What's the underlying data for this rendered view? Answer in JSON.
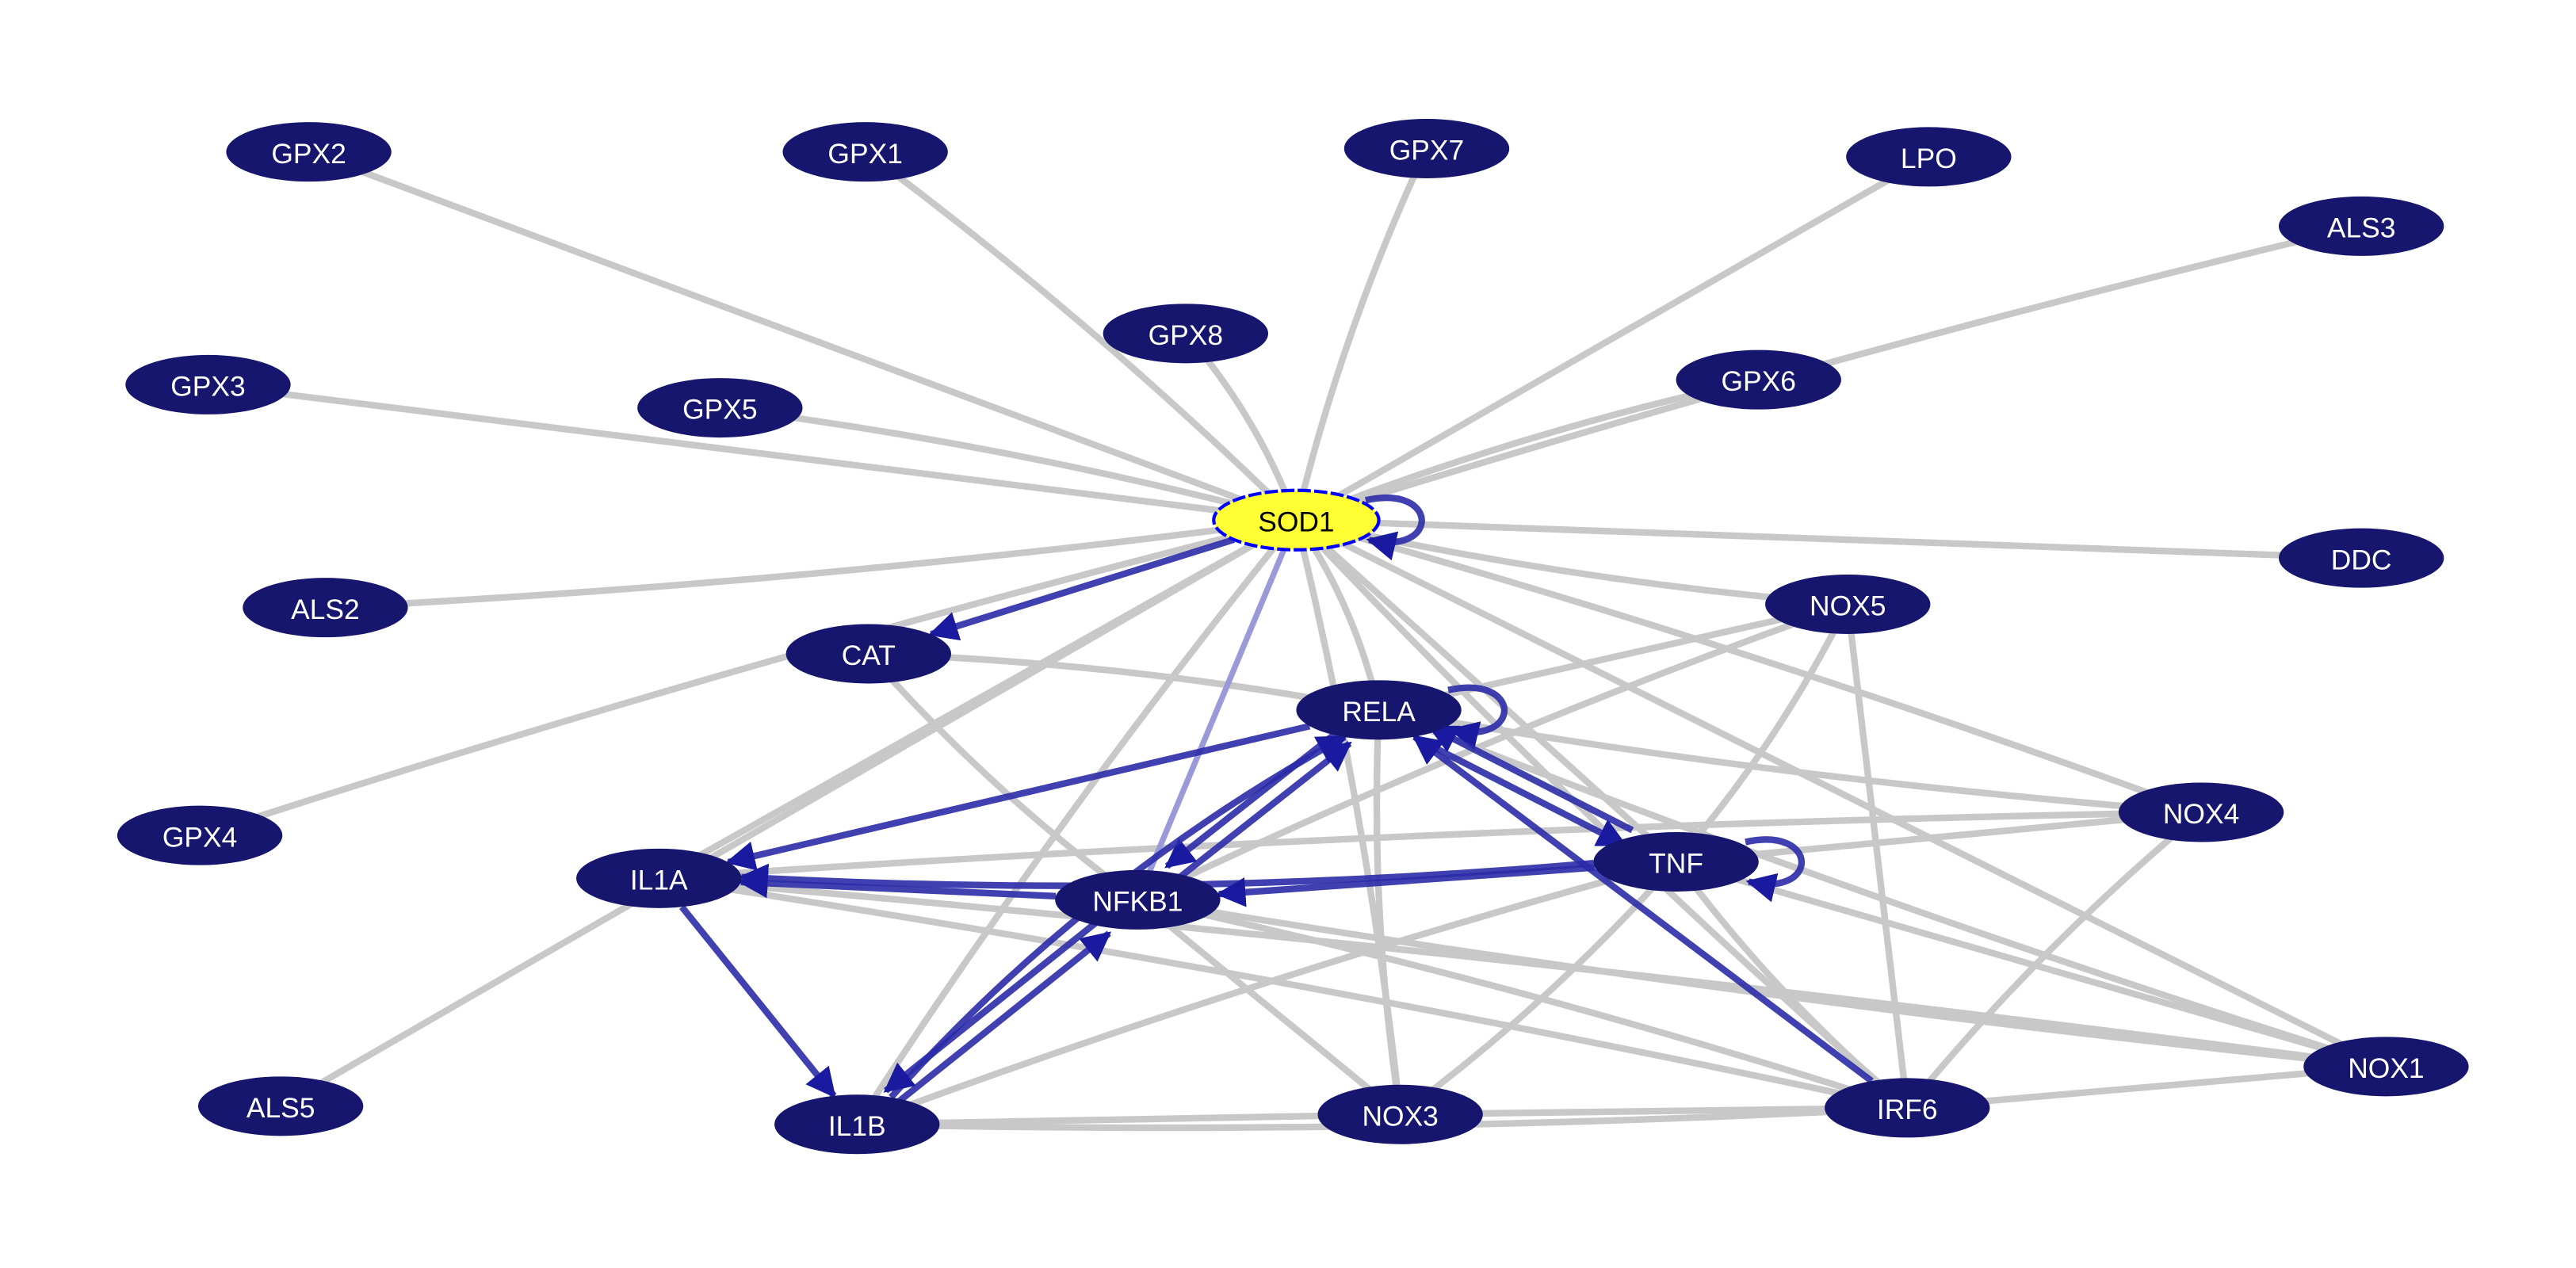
{
  "colors": {
    "node_fill": "#16166e",
    "node_text": "#ffffff",
    "focus_fill": "#ffff33",
    "focus_border": "#0000ff",
    "focus_text": "#000000",
    "edge_gray": "#c8c8c8",
    "edge_blue": "#2b2ba8",
    "edge_lightblue": "#9a9ad8",
    "background": "#ffffff"
  },
  "focus_node": "SOD1",
  "nodes": [
    "GPX2",
    "GPX1",
    "GPX7",
    "LPO",
    "ALS3",
    "GPX8",
    "GPX3",
    "GPX5",
    "GPX6",
    "SOD1",
    "DDC",
    "ALS2",
    "NOX5",
    "CAT",
    "RELA",
    "GPX4",
    "NOX4",
    "IL1A",
    "TNF",
    "NFKB1",
    "ALS5",
    "IL1B",
    "NOX3",
    "IRF6",
    "NOX1"
  ],
  "edges_undirected": [
    [
      "SOD1",
      "GPX2"
    ],
    [
      "SOD1",
      "GPX1"
    ],
    [
      "SOD1",
      "GPX7"
    ],
    [
      "SOD1",
      "LPO"
    ],
    [
      "SOD1",
      "ALS3"
    ],
    [
      "SOD1",
      "GPX8"
    ],
    [
      "SOD1",
      "GPX3"
    ],
    [
      "SOD1",
      "GPX5"
    ],
    [
      "SOD1",
      "GPX6"
    ],
    [
      "SOD1",
      "DDC"
    ],
    [
      "SOD1",
      "ALS2"
    ],
    [
      "SOD1",
      "GPX4"
    ],
    [
      "SOD1",
      "ALS5"
    ],
    [
      "SOD1",
      "NOX5"
    ],
    [
      "SOD1",
      "NOX4"
    ],
    [
      "SOD1",
      "NOX1"
    ],
    [
      "SOD1",
      "NOX3"
    ],
    [
      "SOD1",
      "IRF6"
    ],
    [
      "SOD1",
      "IL1A"
    ],
    [
      "SOD1",
      "IL1B"
    ],
    [
      "SOD1",
      "RELA"
    ],
    [
      "SOD1",
      "TNF"
    ],
    [
      "CAT",
      "RELA"
    ],
    [
      "CAT",
      "NFKB1"
    ],
    [
      "NOX5",
      "RELA"
    ],
    [
      "NOX5",
      "NFKB1"
    ],
    [
      "NOX5",
      "TNF"
    ],
    [
      "NOX5",
      "IRF6"
    ],
    [
      "NOX4",
      "RELA"
    ],
    [
      "NOX4",
      "IL1A"
    ],
    [
      "NOX4",
      "TNF"
    ],
    [
      "NOX4",
      "IRF6"
    ],
    [
      "NOX1",
      "RELA"
    ],
    [
      "NOX1",
      "TNF"
    ],
    [
      "NOX1",
      "NFKB1"
    ],
    [
      "NOX1",
      "IL1A"
    ],
    [
      "NOX1",
      "IRF6"
    ],
    [
      "IRF6",
      "IL1A"
    ],
    [
      "IRF6",
      "IL1B"
    ],
    [
      "IRF6",
      "NOX3"
    ],
    [
      "IRF6",
      "TNF"
    ],
    [
      "IRF6",
      "NFKB1"
    ],
    [
      "NOX3",
      "NFKB1"
    ],
    [
      "NOX3",
      "TNF"
    ],
    [
      "NOX3",
      "RELA"
    ],
    [
      "NOX3",
      "IL1B"
    ],
    [
      "IL1B",
      "TNF"
    ]
  ],
  "edges_directed": [
    [
      "SOD1",
      "CAT"
    ],
    [
      "SOD1",
      "SOD1"
    ],
    [
      "RELA",
      "RELA"
    ],
    [
      "TNF",
      "TNF"
    ],
    [
      "RELA",
      "TNF"
    ],
    [
      "TNF",
      "RELA"
    ],
    [
      "RELA",
      "IL1A"
    ],
    [
      "RELA",
      "NFKB1"
    ],
    [
      "NFKB1",
      "RELA"
    ],
    [
      "IL1B",
      "RELA"
    ],
    [
      "IRF6",
      "RELA"
    ],
    [
      "TNF",
      "IL1A"
    ],
    [
      "TNF",
      "NFKB1"
    ],
    [
      "NFKB1",
      "IL1A"
    ],
    [
      "IL1A",
      "IL1B"
    ],
    [
      "IL1B",
      "NFKB1"
    ],
    [
      "NFKB1",
      "IL1B"
    ]
  ],
  "edges_weak": [
    [
      "SOD1",
      "NFKB1"
    ]
  ]
}
